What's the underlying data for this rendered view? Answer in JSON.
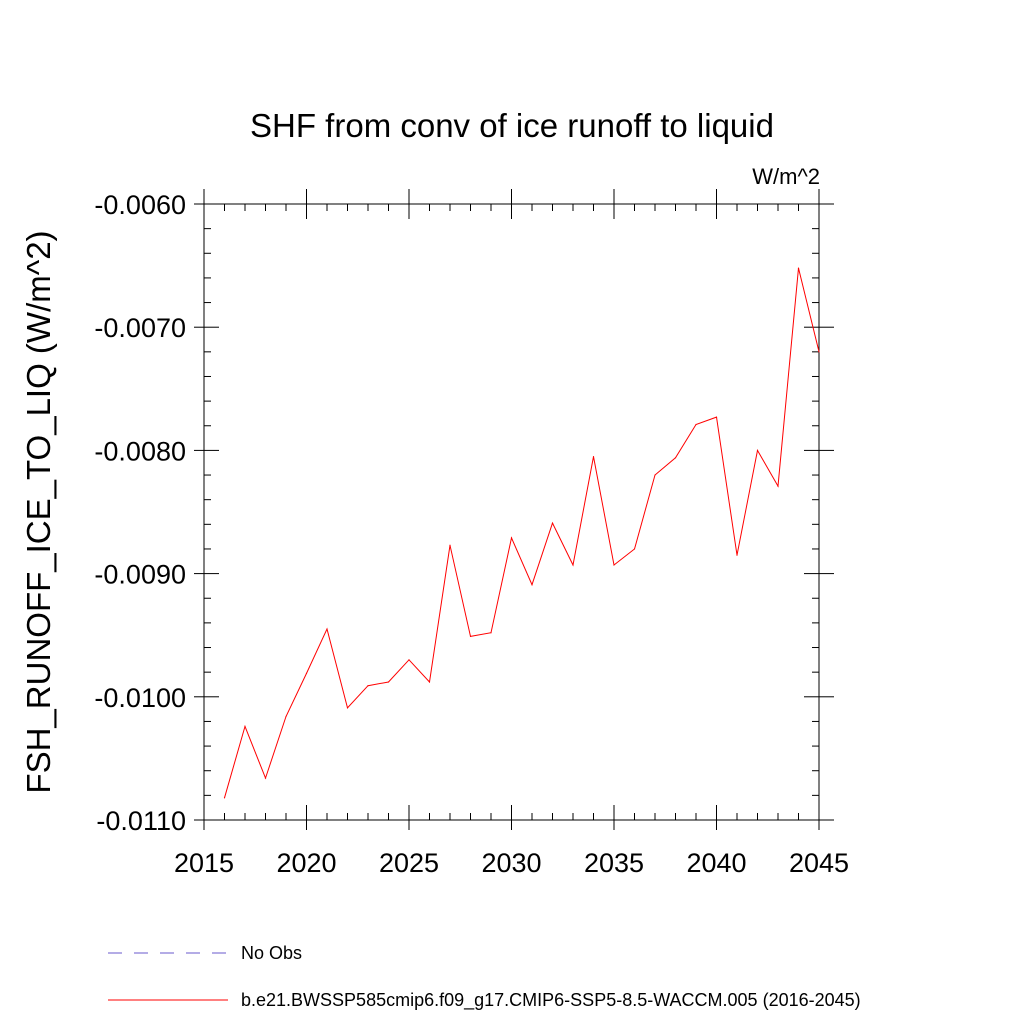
{
  "chart_data": {
    "type": "line",
    "title": "SHF from conv of ice runoff to liquid",
    "units_label": "W/m^2",
    "xlabel": "",
    "ylabel": "FSH_RUNOFF_ICE_TO_LIQ  (W/m^2)",
    "xlim": [
      2015,
      2045
    ],
    "ylim": [
      -0.011,
      -0.006
    ],
    "x_ticks": [
      2015,
      2020,
      2025,
      2030,
      2035,
      2040,
      2045
    ],
    "x_tick_labels": [
      "2015",
      "2020",
      "2025",
      "2030",
      "2035",
      "2040",
      "2045"
    ],
    "y_ticks": [
      -0.006,
      -0.007,
      -0.008,
      -0.009,
      -0.01,
      -0.011
    ],
    "y_tick_labels": [
      "-0.0060",
      "-0.0070",
      "-0.0080",
      "-0.0090",
      "-0.0100",
      "-0.0110"
    ],
    "grid": false,
    "legend_position": "bottom",
    "series": [
      {
        "name": "No Obs",
        "color": "#6a5acd",
        "style": "dashed",
        "x": [],
        "values": []
      },
      {
        "name": "b.e21.BWSSP585cmip6.f09_g17.CMIP6-SSP5-8.5-WACCM.005 (2016-2045)",
        "color": "#ff0000",
        "style": "solid",
        "x": [
          2016,
          2017,
          2018,
          2019,
          2020,
          2021,
          2022,
          2023,
          2024,
          2025,
          2026,
          2027,
          2028,
          2029,
          2030,
          2031,
          2032,
          2033,
          2034,
          2035,
          2036,
          2037,
          2038,
          2039,
          2040,
          2041,
          2042,
          2043,
          2044,
          2045
        ],
        "values": [
          -0.01082,
          -0.01024,
          -0.01066,
          -0.01016,
          -0.00981,
          -0.00945,
          -0.01009,
          -0.00991,
          -0.00988,
          -0.0097,
          -0.00988,
          -0.00877,
          -0.00951,
          -0.00948,
          -0.00871,
          -0.00909,
          -0.00859,
          -0.00893,
          -0.00805,
          -0.00893,
          -0.0088,
          -0.0082,
          -0.00806,
          -0.00779,
          -0.00773,
          -0.00885,
          -0.008,
          -0.00829,
          -0.00652,
          -0.0072
        ]
      }
    ]
  }
}
